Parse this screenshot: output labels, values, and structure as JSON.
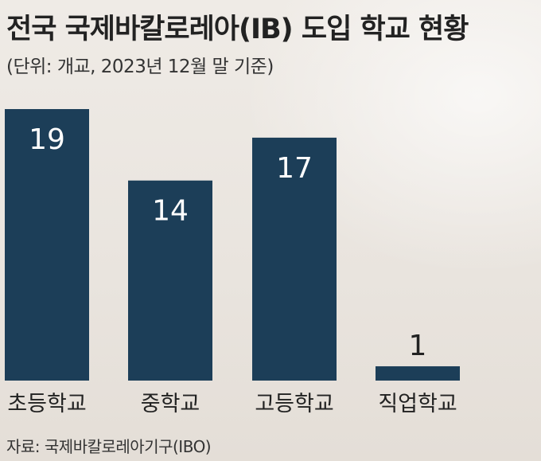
{
  "chart_data": {
    "type": "bar",
    "title": "전국 국제바칼로레아(IB) 도입 학교 현황",
    "subtitle": "(단위: 개교, 2023년 12월 말 기준)",
    "categories": [
      "초등학교",
      "중학교",
      "고등학교",
      "직업학교"
    ],
    "values": [
      19,
      14,
      17,
      1
    ],
    "ylim": [
      0,
      19
    ],
    "grid": false,
    "bar_color": "#1c3e58",
    "source": "자료: 국제바칼로레아기구(IBO)"
  }
}
